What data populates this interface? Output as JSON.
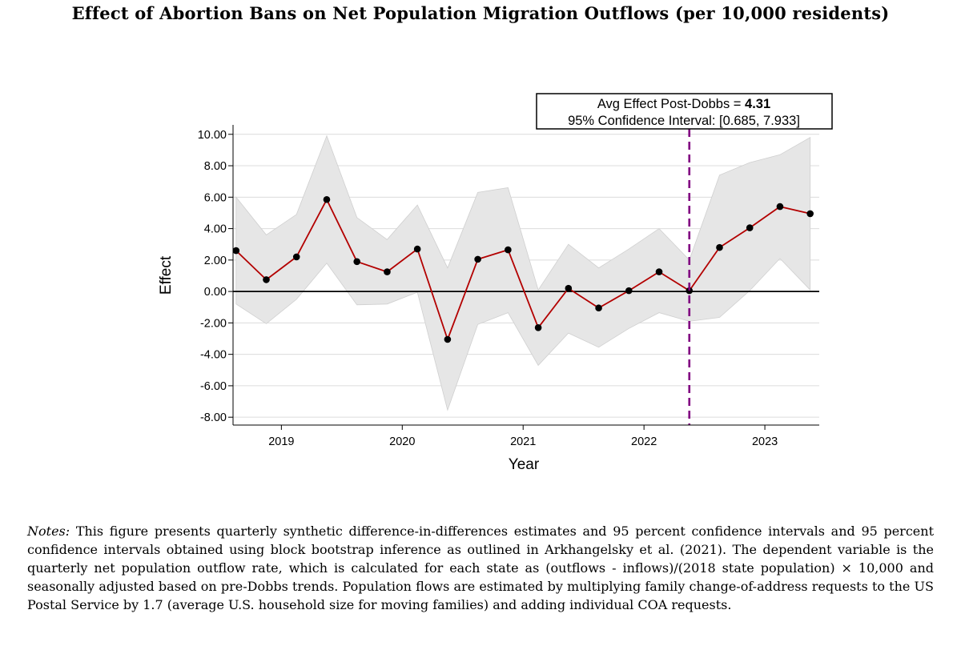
{
  "figure": {
    "title": "Effect of Abortion Bans on Net Population Migration Outflows (per 10,000 residents)",
    "notes_label": "Notes:",
    "notes_text": "This figure presents quarterly synthetic difference-in-differences estimates and 95 percent confidence intervals and 95 percent confidence intervals obtained using block bootstrap inference as outlined in Arkhangelsky et al. (2021). The dependent variable is the quarterly net population outflow rate, which is calculated for each state as (outflows - inflows)/(2018 state population) × 10,000 and seasonally adjusted based on pre-Dobbs trends. Population flows are estimated by multiplying family change-of-address requests to the US Postal Service by 1.7 (average U.S. household size for moving families) and adding individual COA requests."
  },
  "chart_data": {
    "type": "line",
    "xlabel": "Year",
    "ylabel": "Effect",
    "xlim": [
      2018.6,
      2023.45
    ],
    "ylim": [
      -8.5,
      10.6
    ],
    "x_ticks": [
      2019,
      2020,
      2021,
      2022,
      2023
    ],
    "x_tick_labels": [
      "2019",
      "2020",
      "2021",
      "2022",
      "2023"
    ],
    "y_ticks": [
      -8,
      -6,
      -4,
      -2,
      0,
      2,
      4,
      6,
      8,
      10
    ],
    "y_tick_labels": [
      "-8.00",
      "-6.00",
      "-4.00",
      "-2.00",
      "0.00",
      "2.00",
      "4.00",
      "6.00",
      "8.00",
      "10.00"
    ],
    "grid": true,
    "zero_line": true,
    "series": [
      {
        "x": [
          2018.625,
          2018.875,
          2019.125,
          2019.375,
          2019.625,
          2019.875,
          2020.125,
          2020.375,
          2020.625,
          2020.875,
          2021.125,
          2021.375,
          2021.625,
          2021.875,
          2022.125,
          2022.375,
          2022.625,
          2022.875,
          2023.125,
          2023.375
        ],
        "y": [
          2.6,
          0.75,
          2.2,
          5.85,
          1.9,
          1.25,
          2.7,
          -3.05,
          2.05,
          2.65,
          -2.3,
          0.2,
          -1.05,
          0.05,
          1.25,
          0.05,
          2.8,
          4.05,
          5.4,
          4.95
        ],
        "ci_upper": [
          6.0,
          3.6,
          4.9,
          9.9,
          4.7,
          3.3,
          5.5,
          1.5,
          6.3,
          6.6,
          0.1,
          3.0,
          1.5,
          2.7,
          4.0,
          2.0,
          7.4,
          8.2,
          8.7,
          9.8
        ],
        "ci_lower": [
          -0.8,
          -2.05,
          -0.5,
          1.8,
          -0.85,
          -0.8,
          -0.05,
          -7.55,
          -2.1,
          -1.35,
          -4.7,
          -2.65,
          -3.55,
          -2.35,
          -1.35,
          -1.9,
          -1.65,
          0.05,
          2.1,
          0.1
        ],
        "color": "#b30000",
        "marker_color": "#000000",
        "ci_color": "#e6e6e6"
      }
    ],
    "vertical_line": {
      "x": 2022.375,
      "color": "#800080",
      "style": "dashed"
    },
    "annotation": {
      "line1_prefix": "Avg Effect Post-Dobbs = ",
      "line1_value": "4.31",
      "line2": "95% Confidence Interval: [0.685, 7.933]"
    }
  }
}
